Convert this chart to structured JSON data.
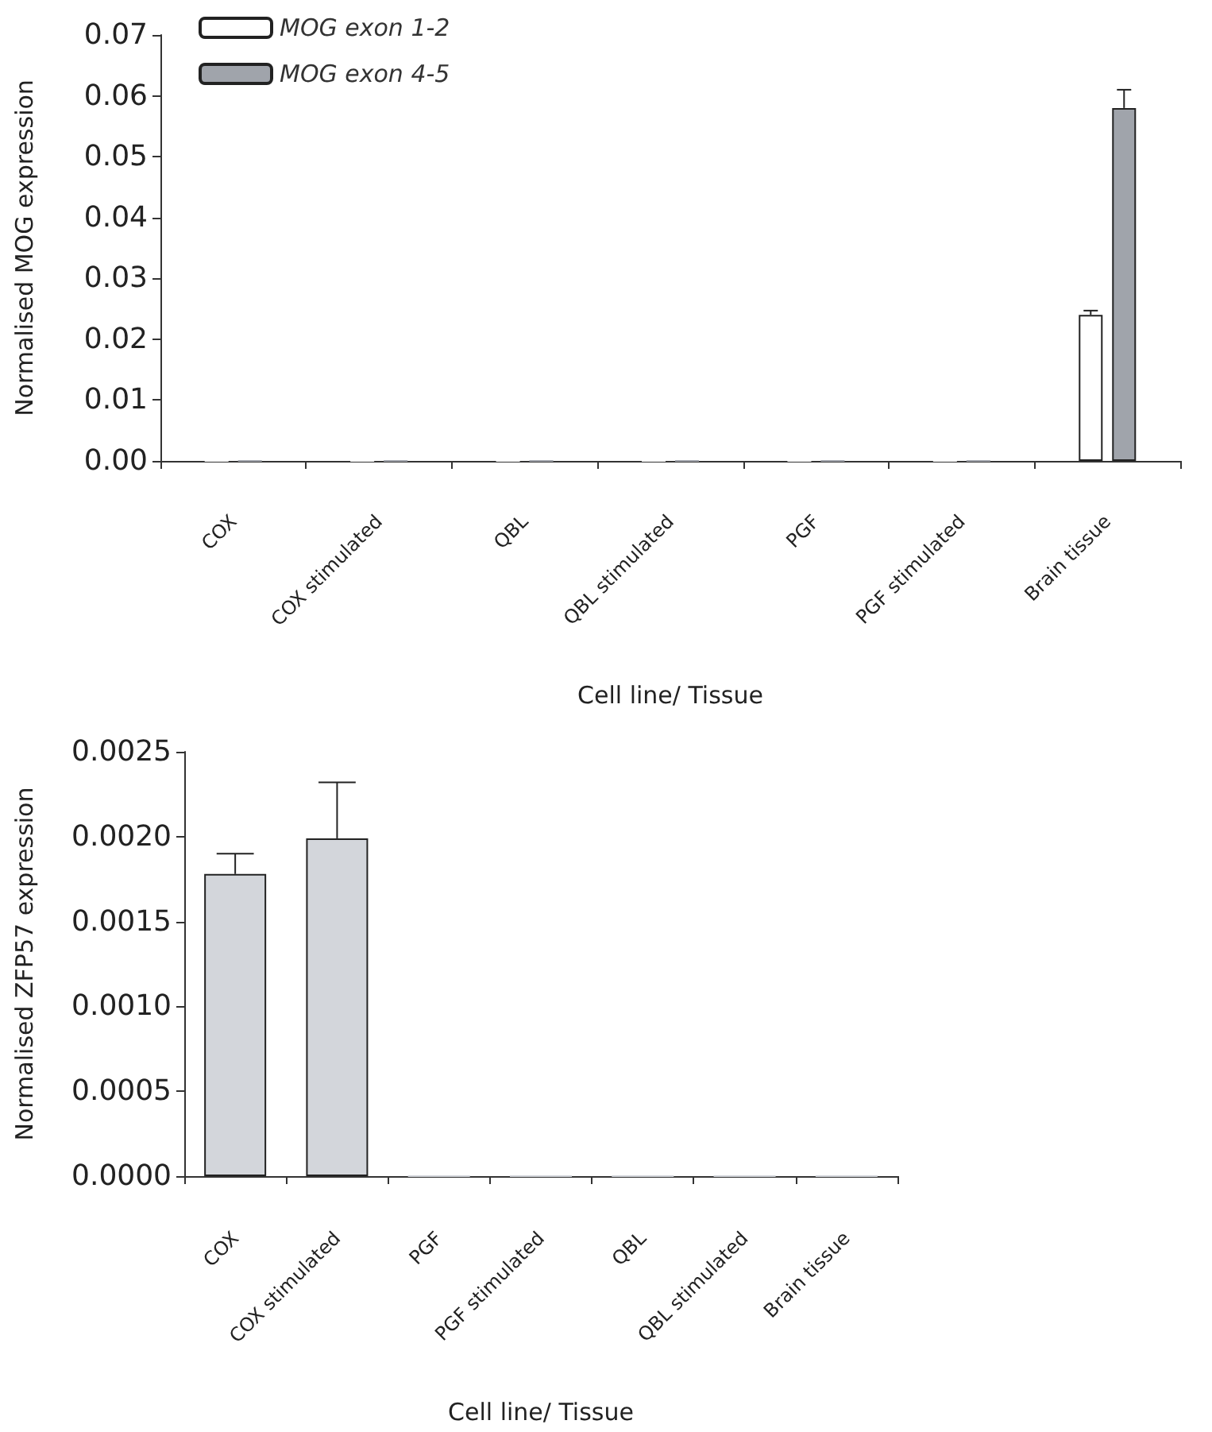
{
  "chart_data": [
    {
      "type": "bar",
      "ylabel": "Normalised MOG expression",
      "xlabel": "Cell line/ Tissue",
      "categories": [
        "COX",
        "COX stimulated",
        "QBL",
        "QBL stimulated",
        "PGF",
        "PGF stimulated",
        "Brain tissue"
      ],
      "series": [
        {
          "name": "MOG exon 1-2",
          "color": "#ffffff",
          "values": [
            0,
            0,
            0,
            0,
            0,
            0,
            0.024
          ],
          "errors": [
            null,
            null,
            null,
            null,
            null,
            null,
            0.0007
          ]
        },
        {
          "name": "MOG exon 4-5",
          "color": "#a0a4ab",
          "values": [
            0,
            0,
            0,
            0,
            0,
            0,
            0.058
          ],
          "errors": [
            null,
            null,
            null,
            null,
            null,
            null,
            0.003
          ]
        }
      ],
      "ylim": [
        0,
        0.07
      ],
      "yticks": [
        {
          "value": 0,
          "label": "0.00"
        },
        {
          "value": 0.01,
          "label": "0.01"
        },
        {
          "value": 0.02,
          "label": "0.02"
        },
        {
          "value": 0.03,
          "label": "0.03"
        },
        {
          "value": 0.04,
          "label": "0.04"
        },
        {
          "value": 0.05,
          "label": "0.05"
        },
        {
          "value": 0.06,
          "label": "0.06"
        },
        {
          "value": 0.07,
          "label": "0.07"
        }
      ],
      "grid": false,
      "legend": "top left"
    },
    {
      "type": "bar",
      "ylabel": "Normalised ZFP57 expression",
      "xlabel": "Cell line/ Tissue",
      "categories": [
        "COX",
        "COX stimulated",
        "PGF",
        "PGF stimulated",
        "QBL",
        "QBL stimulated",
        "Brain tissue"
      ],
      "series": [
        {
          "color": "#d3d6db",
          "values": [
            0.00178,
            0.00199,
            0,
            0,
            0,
            0,
            0
          ],
          "errors": [
            0.00012,
            0.00033,
            null,
            null,
            null,
            null,
            null
          ]
        }
      ],
      "ylim": [
        0,
        0.0025
      ],
      "yticks": [
        {
          "value": 0,
          "label": "0.0000"
        },
        {
          "value": 0.0005,
          "label": "0.0005"
        },
        {
          "value": 0.001,
          "label": "0.0010"
        },
        {
          "value": 0.0015,
          "label": "0.0015"
        },
        {
          "value": 0.002,
          "label": "0.0020"
        },
        {
          "value": 0.0025,
          "label": "0.0025"
        }
      ],
      "grid": false,
      "legend": false
    }
  ]
}
